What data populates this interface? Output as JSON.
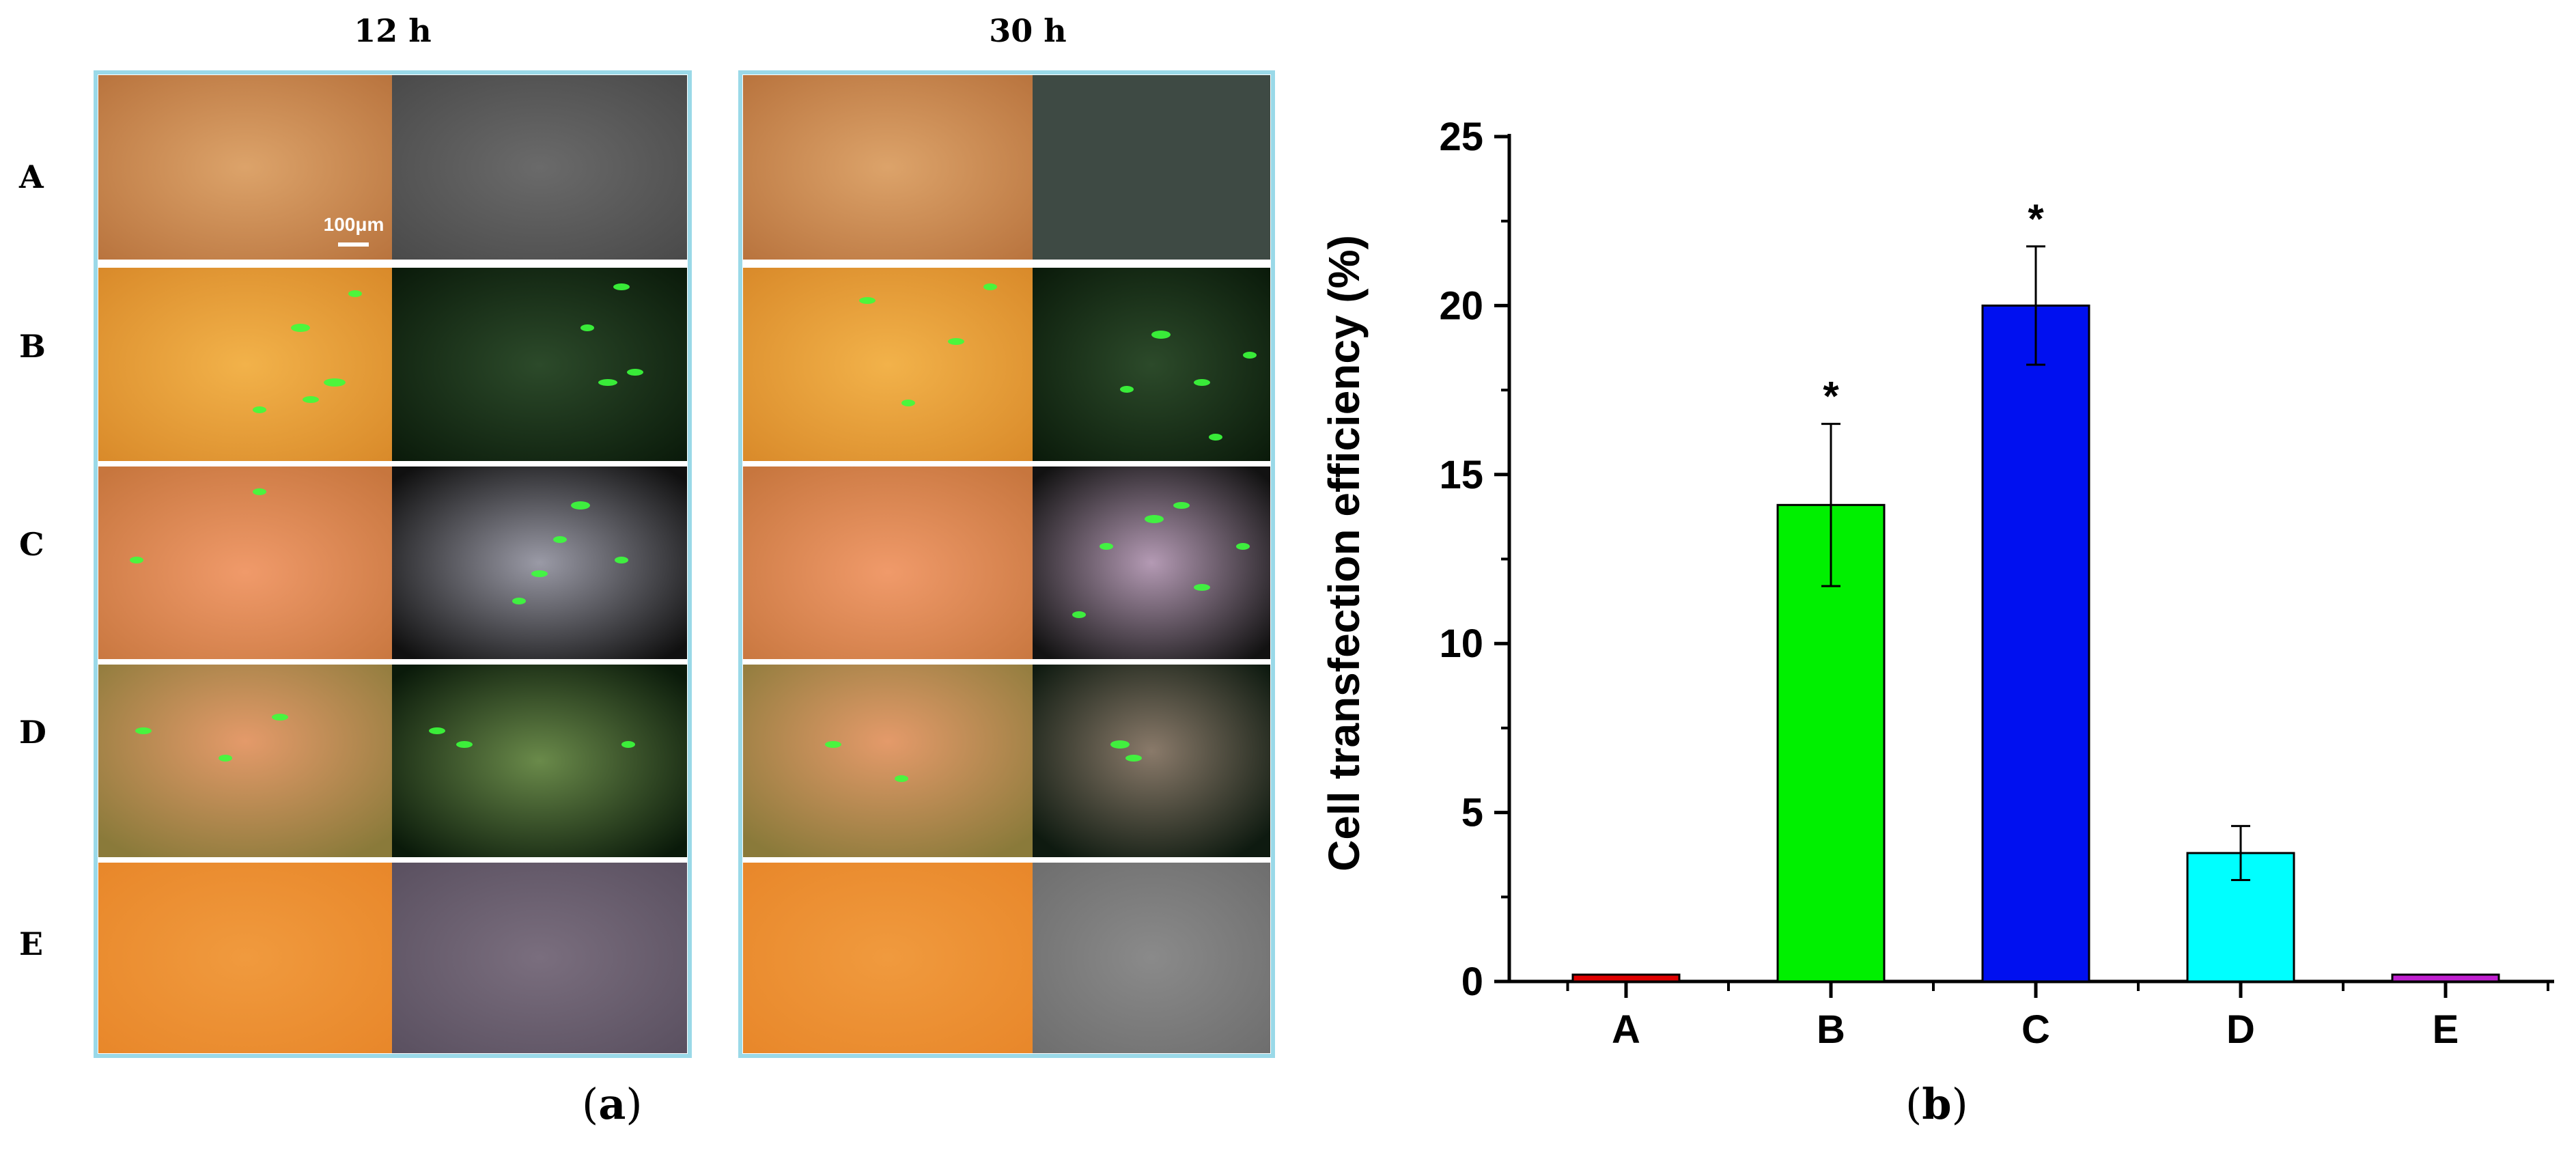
{
  "panel_a": {
    "column_titles": [
      "12 h",
      "30 h"
    ],
    "row_labels": [
      "A",
      "B",
      "C",
      "D",
      "E"
    ],
    "scale_bar_label": "100μm",
    "caption": "(a)",
    "caption_letter": "a",
    "colors": {
      "frame_border": "#9ad9e8",
      "row_separator": "#ffffff"
    }
  },
  "panel_b": {
    "caption": "(b)",
    "caption_letter": "b"
  },
  "chart_data": {
    "type": "bar",
    "categories": [
      "A",
      "B",
      "C",
      "D",
      "E"
    ],
    "values": [
      0.05,
      14.1,
      20.0,
      3.8,
      0.05
    ],
    "errors": [
      0,
      2.4,
      1.75,
      0.8,
      0
    ],
    "significance": [
      "",
      "*",
      "*",
      "",
      ""
    ],
    "bar_colors": [
      "#e00000",
      "#00f000",
      "#0010f0",
      "#00ffff",
      "#c020d0"
    ],
    "title": "",
    "xlabel": "",
    "ylabel": "Cell transfection efficiency (%)",
    "ylim": [
      0,
      25
    ],
    "yticks": [
      0,
      5,
      10,
      15,
      20,
      25
    ],
    "grid": false,
    "legend": "none"
  }
}
